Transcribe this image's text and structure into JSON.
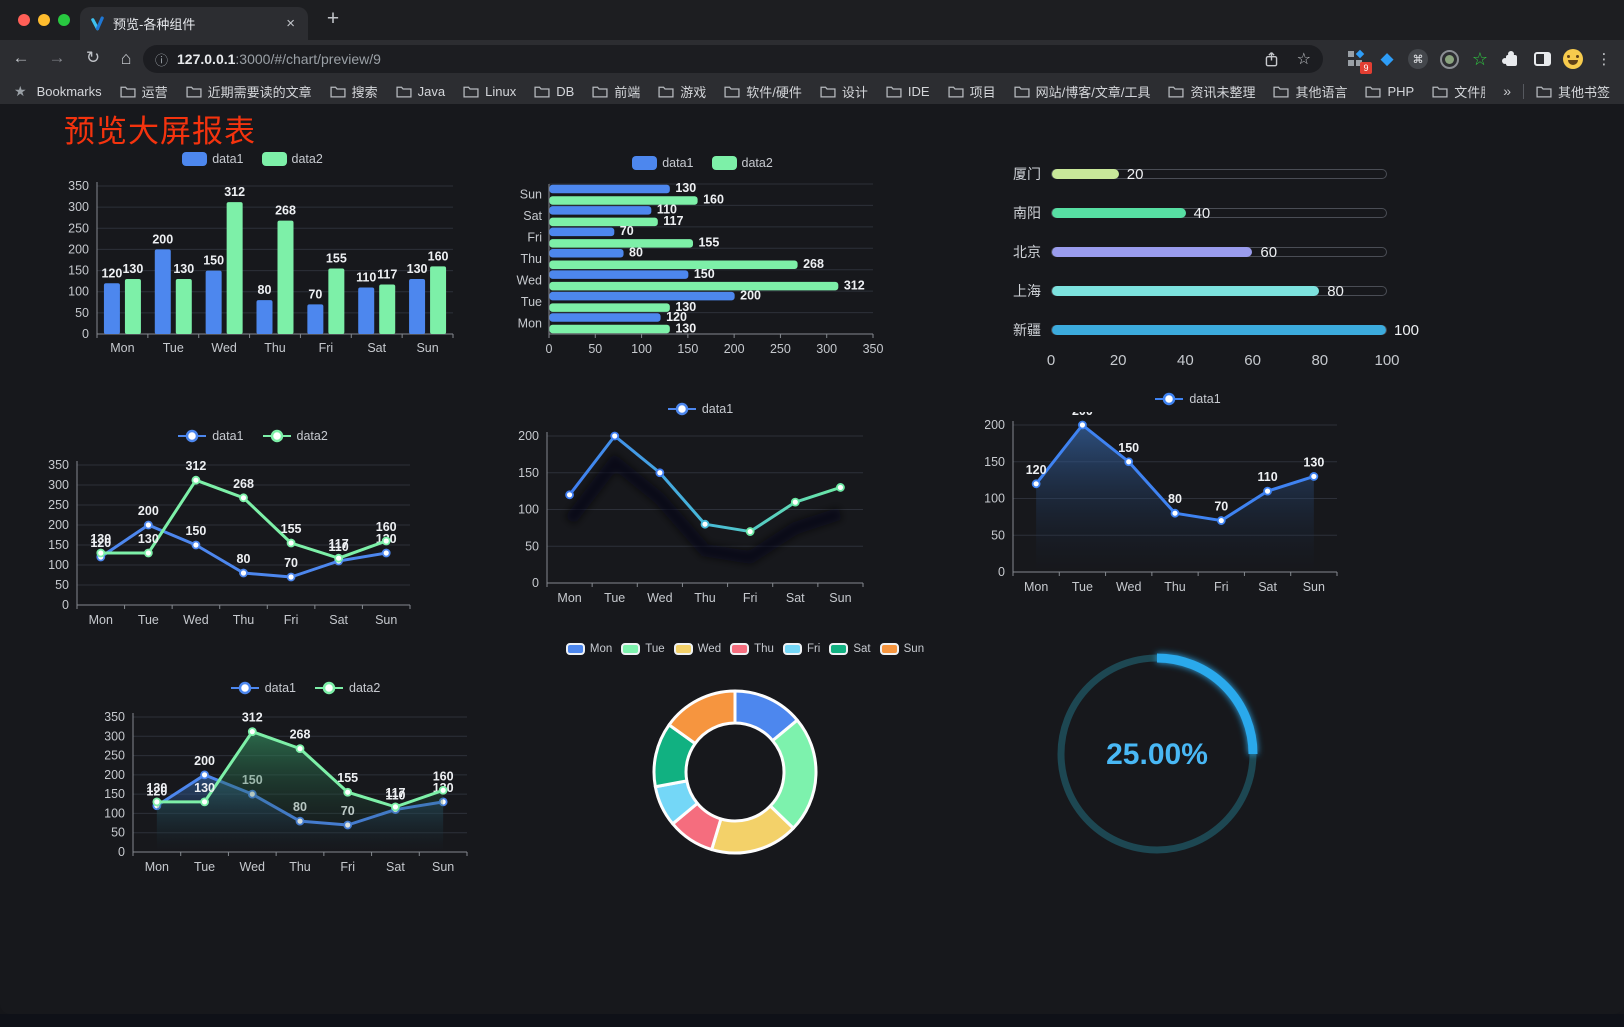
{
  "browser": {
    "traffic_lights": [
      "#ff5f57",
      "#febc2e",
      "#28c840"
    ],
    "tab": {
      "title": "预览-各种组件",
      "close": "×"
    },
    "new_tab_button": "+",
    "toolbar": {
      "url_host": "127.0.0.1",
      "url_rest": ":3000/#/chart/preview/9",
      "info_icon": "ⓘ",
      "extension_badge": "9"
    },
    "bookmarks": {
      "label": "Bookmarks",
      "folders": [
        "运营",
        "近期需要读的文章",
        "搜索",
        "Java",
        "Linux",
        "DB",
        "前端",
        "游戏",
        "软件/硬件",
        "设计",
        "IDE",
        "项目",
        "网站/博客/文章/工具",
        "资讯未整理",
        "其他语言",
        "PHP",
        "文件服务器"
      ],
      "overflow": "»",
      "other": "其他书签"
    }
  },
  "page": {
    "title": "预览大屏报表",
    "title_color": "#f4330e",
    "background": "#17181c"
  },
  "chart_data": [
    {
      "name": "grouped-bar-vertical",
      "type": "bar",
      "categories": [
        "Mon",
        "Tue",
        "Wed",
        "Thu",
        "Fri",
        "Sat",
        "Sun"
      ],
      "series": [
        {
          "name": "data1",
          "color": "#4d87ee",
          "values": [
            120,
            200,
            150,
            80,
            70,
            110,
            130
          ]
        },
        {
          "name": "data2",
          "color": "#7df0a8",
          "values": [
            130,
            130,
            312,
            268,
            155,
            117,
            160
          ]
        }
      ],
      "ylim": [
        0,
        350
      ],
      "ytick_step": 50,
      "value_labels": true,
      "legend_position": "top"
    },
    {
      "name": "grouped-bar-horizontal",
      "type": "hbar",
      "categories": [
        "Mon",
        "Tue",
        "Wed",
        "Thu",
        "Fri",
        "Sat",
        "Sun"
      ],
      "display_order": "Sun-top",
      "series": [
        {
          "name": "data1",
          "color": "#4d87ee",
          "values": [
            120,
            200,
            150,
            80,
            70,
            110,
            130
          ]
        },
        {
          "name": "data2",
          "color": "#7df0a8",
          "values": [
            130,
            130,
            312,
            268,
            155,
            117,
            160
          ]
        }
      ],
      "xlim": [
        0,
        350
      ],
      "xtick_step": 50,
      "value_labels": true
    },
    {
      "name": "progress-bars",
      "type": "progress",
      "items": [
        {
          "label": "厦门",
          "value": 20,
          "color": "#c8e89a"
        },
        {
          "label": "南阳",
          "value": 40,
          "color": "#57dfa3"
        },
        {
          "label": "北京",
          "value": 60,
          "color": "#9a9ced"
        },
        {
          "label": "上海",
          "value": 80,
          "color": "#7de2de"
        },
        {
          "label": "新疆",
          "value": 100,
          "color": "#3cabdd"
        }
      ],
      "max": 100,
      "ticks": [
        0,
        20,
        40,
        60,
        80,
        100
      ]
    },
    {
      "name": "line-two-series",
      "type": "line",
      "categories": [
        "Mon",
        "Tue",
        "Wed",
        "Thu",
        "Fri",
        "Sat",
        "Sun"
      ],
      "series": [
        {
          "name": "data1",
          "color": "#4d87ee",
          "values": [
            120,
            200,
            150,
            80,
            70,
            110,
            130
          ]
        },
        {
          "name": "data2",
          "color": "#7df0a8",
          "values": [
            130,
            130,
            312,
            268,
            155,
            117,
            160
          ]
        }
      ],
      "ylim": [
        0,
        350
      ],
      "ytick_step": 50,
      "value_labels": true
    },
    {
      "name": "line-gradient",
      "type": "line",
      "categories": [
        "Mon",
        "Tue",
        "Wed",
        "Thu",
        "Fri",
        "Sat",
        "Sun"
      ],
      "series": [
        {
          "name": "data1",
          "color": "#4d87ee",
          "gradient": [
            "#3f7df2",
            "#47b9d8",
            "#6ce8a4"
          ],
          "values": [
            120,
            200,
            150,
            80,
            70,
            110,
            130
          ]
        }
      ],
      "ylim": [
        0,
        200
      ],
      "ytick_step": 50,
      "value_labels": false,
      "shadow": true
    },
    {
      "name": "line-area",
      "type": "line",
      "categories": [
        "Mon",
        "Tue",
        "Wed",
        "Thu",
        "Fri",
        "Sat",
        "Sun"
      ],
      "series": [
        {
          "name": "data1",
          "color": "#3f83f2",
          "area": [
            "rgba(58,110,180,0.65)",
            "rgba(20,35,60,0)"
          ],
          "values": [
            120,
            200,
            150,
            80,
            70,
            110,
            130
          ]
        }
      ],
      "ylim": [
        0,
        200
      ],
      "ytick_step": 50,
      "value_labels": true
    },
    {
      "name": "line-area-two",
      "type": "line",
      "categories": [
        "Mon",
        "Tue",
        "Wed",
        "Thu",
        "Fri",
        "Sat",
        "Sun"
      ],
      "series": [
        {
          "name": "data1",
          "color": "#4d87ee",
          "area": [
            "rgba(58,110,180,0.6)",
            "rgba(20,35,60,0)"
          ],
          "values": [
            120,
            200,
            150,
            80,
            70,
            110,
            130
          ]
        },
        {
          "name": "data2",
          "color": "#7df0a8",
          "area": [
            "rgba(52,140,95,0.7)",
            "rgba(20,45,35,0)"
          ],
          "values": [
            130,
            130,
            312,
            268,
            155,
            117,
            160
          ]
        }
      ],
      "ylim": [
        0,
        350
      ],
      "ytick_step": 50,
      "value_labels": true
    },
    {
      "name": "donut-pie",
      "type": "pie",
      "items": [
        {
          "label": "Mon",
          "value": 120,
          "color": "#4d87ee"
        },
        {
          "label": "Tue",
          "value": 200,
          "color": "#7df2ad"
        },
        {
          "label": "Wed",
          "value": 150,
          "color": "#f3d169"
        },
        {
          "label": "Thu",
          "value": 80,
          "color": "#f56d7e"
        },
        {
          "label": "Fri",
          "value": 70,
          "color": "#74d7f7"
        },
        {
          "label": "Sat",
          "value": 110,
          "color": "#11b181"
        },
        {
          "label": "Sun",
          "value": 130,
          "color": "#f6953f"
        }
      ]
    },
    {
      "name": "gauge-progress",
      "type": "gauge",
      "percent": 25,
      "display": "25.00%",
      "track_color": "#1d4752",
      "bar_color": "#2aa9ec",
      "text_color": "#49b8f5"
    }
  ]
}
